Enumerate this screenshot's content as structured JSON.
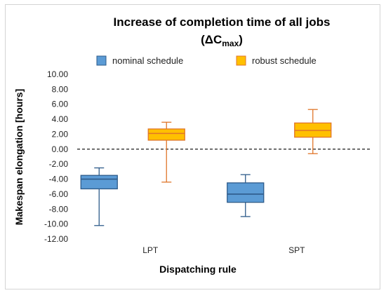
{
  "chart_data": {
    "type": "boxplot",
    "title_line1": "Increase of completion time of all jobs",
    "title_line2_main": "(ΔC",
    "title_line2_sub": "max",
    "title_line2_end": ")",
    "xlabel": "Dispatching rule",
    "ylabel": "Makespan elongation [hours]",
    "ylim": [
      -12,
      10
    ],
    "yticks": [
      "10.00",
      "8.00",
      "6.00",
      "4.00",
      "2.00",
      "0.00",
      "-2.00",
      "-4.00",
      "-6.00",
      "-8.00",
      "-10.00",
      "-12.00"
    ],
    "ytick_values": [
      10,
      8,
      6,
      4,
      2,
      0,
      -2,
      -4,
      -6,
      -8,
      -10,
      -12
    ],
    "reference_line": 0,
    "legend_position": "top",
    "categories": [
      "LPT",
      "SPT"
    ],
    "series": [
      {
        "name": "nominal schedule",
        "fill": "#5b9bd5",
        "stroke": "#2e5b8a",
        "boxes": [
          {
            "min": -10.2,
            "q1": -5.3,
            "median": -4.0,
            "q3": -3.5,
            "max": -2.5
          },
          {
            "min": -9.0,
            "q1": -7.1,
            "median": -6.0,
            "q3": -4.5,
            "max": -3.4
          }
        ]
      },
      {
        "name": "robust schedule",
        "fill": "#ffc000",
        "stroke": "#e0762a",
        "boxes": [
          {
            "min": -4.4,
            "q1": 1.2,
            "median": 2.1,
            "q3": 2.7,
            "max": 3.6
          },
          {
            "min": -0.6,
            "q1": 1.6,
            "median": 2.5,
            "q3": 3.5,
            "max": 5.3
          }
        ]
      }
    ]
  }
}
